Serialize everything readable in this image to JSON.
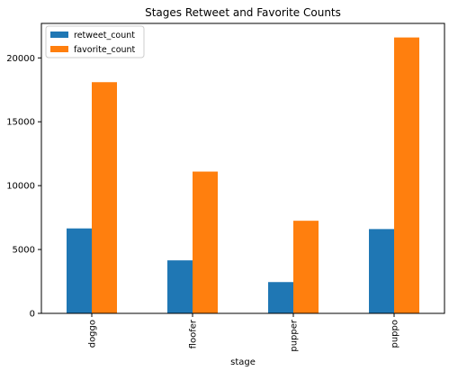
{
  "chart_data": {
    "type": "bar",
    "title": "Stages Retweet and Favorite Counts",
    "xlabel": "stage",
    "ylabel": "",
    "categories": [
      "doggo",
      "floofer",
      "pupper",
      "puppo"
    ],
    "series": [
      {
        "name": "retweet_count",
        "values": [
          6650,
          4150,
          2450,
          6600
        ],
        "color": "#1f77b4"
      },
      {
        "name": "favorite_count",
        "values": [
          18100,
          11100,
          7250,
          21600
        ],
        "color": "#ff7f0e"
      }
    ],
    "ylim": [
      0,
      22700
    ],
    "yticks": [
      0,
      5000,
      10000,
      15000,
      20000
    ],
    "grid": false,
    "legend_position": "top-left"
  }
}
